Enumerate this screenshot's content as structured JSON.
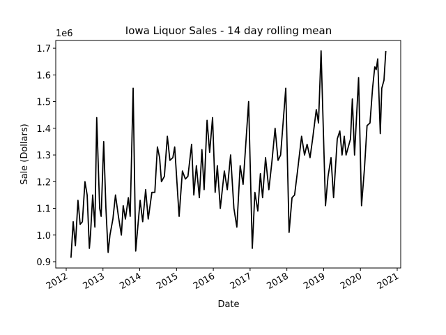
{
  "chart_data": {
    "type": "line",
    "title": "Iowa Liquor Sales - 14 day rolling mean",
    "xlabel": "Date",
    "ylabel": "Sale (Dollars)",
    "y_offset_label": "1e6",
    "x": [
      2012.13,
      2012.19,
      2012.25,
      2012.32,
      2012.38,
      2012.44,
      2012.51,
      2012.57,
      2012.63,
      2012.66,
      2012.72,
      2012.78,
      2012.83,
      2012.91,
      2012.95,
      2013.02,
      2013.08,
      2013.14,
      2013.19,
      2013.27,
      2013.34,
      2013.42,
      2013.5,
      2013.55,
      2013.61,
      2013.69,
      2013.74,
      2013.82,
      2013.89,
      2014.01,
      2014.08,
      2014.16,
      2014.23,
      2014.33,
      2014.41,
      2014.48,
      2014.54,
      2014.59,
      2014.67,
      2014.75,
      2014.82,
      2014.9,
      2014.95,
      2015.07,
      2015.16,
      2015.24,
      2015.31,
      2015.41,
      2015.47,
      2015.54,
      2015.62,
      2015.69,
      2015.75,
      2015.83,
      2015.9,
      2015.98,
      2016.05,
      2016.11,
      2016.19,
      2016.3,
      2016.38,
      2016.47,
      2016.56,
      2016.64,
      2016.73,
      2016.81,
      2016.96,
      2017.06,
      2017.13,
      2017.21,
      2017.28,
      2017.34,
      2017.42,
      2017.51,
      2017.59,
      2017.68,
      2017.76,
      2017.83,
      2017.97,
      2018.06,
      2018.14,
      2018.21,
      2018.29,
      2018.4,
      2018.48,
      2018.55,
      2018.63,
      2018.7,
      2018.8,
      2018.86,
      2018.93,
      2019.05,
      2019.12,
      2019.2,
      2019.27,
      2019.37,
      2019.44,
      2019.5,
      2019.56,
      2019.61,
      2019.73,
      2019.78,
      2019.84,
      2019.95,
      2020.03,
      2020.11,
      2020.18,
      2020.26,
      2020.33,
      2020.39,
      2020.43,
      2020.47,
      2020.54,
      2020.58,
      2020.64,
      2020.69
    ],
    "series": [
      {
        "color": "#000000",
        "values": [
          0.915,
          1.05,
          0.96,
          1.13,
          1.04,
          1.05,
          1.2,
          1.15,
          0.95,
          1.0,
          1.15,
          1.03,
          1.44,
          1.1,
          1.07,
          1.35,
          1.1,
          0.935,
          1.0,
          1.06,
          1.15,
          1.07,
          1.0,
          1.11,
          1.06,
          1.14,
          1.07,
          1.55,
          0.94,
          1.13,
          1.05,
          1.17,
          1.06,
          1.16,
          1.16,
          1.33,
          1.29,
          1.2,
          1.22,
          1.37,
          1.28,
          1.29,
          1.33,
          1.07,
          1.24,
          1.21,
          1.22,
          1.34,
          1.15,
          1.26,
          1.14,
          1.32,
          1.17,
          1.43,
          1.31,
          1.44,
          1.16,
          1.26,
          1.1,
          1.24,
          1.17,
          1.3,
          1.1,
          1.03,
          1.26,
          1.19,
          1.5,
          0.95,
          1.16,
          1.09,
          1.23,
          1.14,
          1.29,
          1.17,
          1.27,
          1.4,
          1.28,
          1.3,
          1.55,
          1.01,
          1.14,
          1.15,
          1.24,
          1.37,
          1.3,
          1.34,
          1.29,
          1.36,
          1.47,
          1.42,
          1.69,
          1.11,
          1.22,
          1.29,
          1.14,
          1.36,
          1.39,
          1.3,
          1.37,
          1.3,
          1.36,
          1.51,
          1.3,
          1.59,
          1.11,
          1.25,
          1.41,
          1.42,
          1.55,
          1.63,
          1.62,
          1.66,
          1.38,
          1.55,
          1.58,
          1.69
        ]
      }
    ],
    "xlim": [
      2011.716,
      2021.095
    ],
    "xticks": [
      2012,
      2013,
      2014,
      2015,
      2016,
      2017,
      2018,
      2019,
      2020,
      2021
    ],
    "ylim": [
      0.8765,
      1.729
    ],
    "yticks": [
      0.9,
      {
        "value": 1,
        "label": "1.0"
      },
      1.1,
      1.2,
      1.3,
      1.4,
      1.5,
      1.6,
      1.7
    ],
    "grid": false
  }
}
